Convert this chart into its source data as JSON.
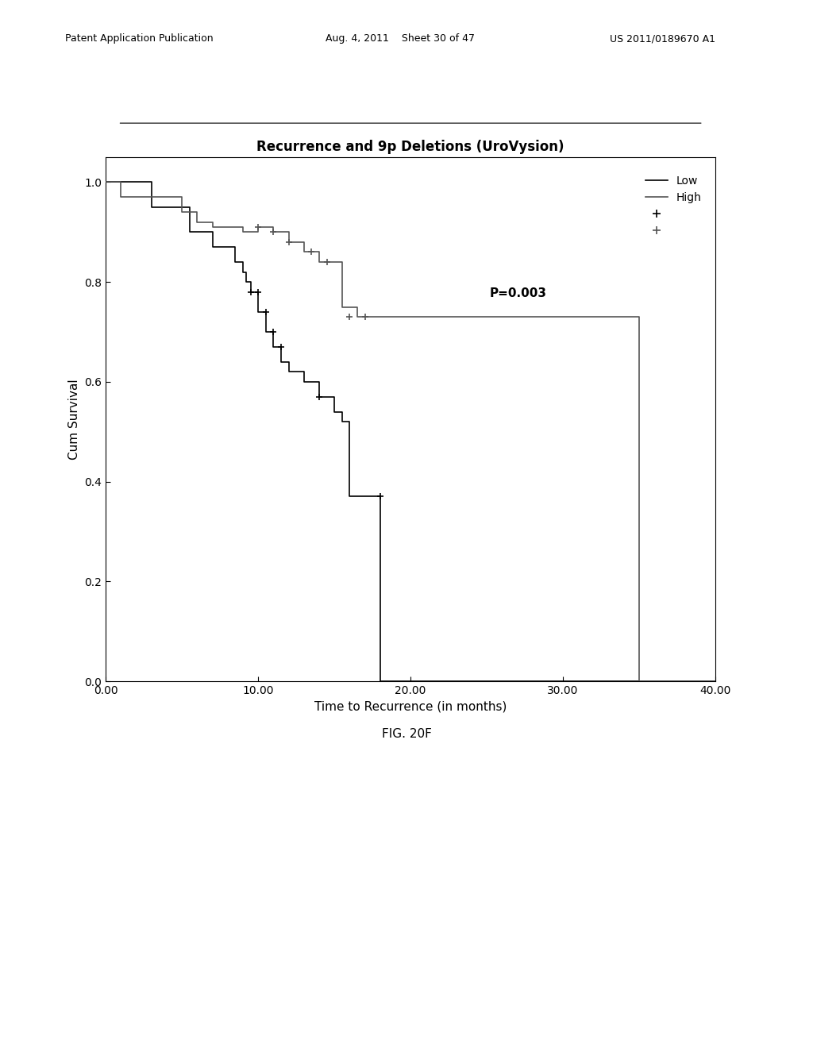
{
  "title": "Recurrence and 9p Deletions (UroVysion)",
  "xlabel": "Time to Recurrence (in months)",
  "ylabel": "Cum Survival",
  "xlim": [
    0,
    40
  ],
  "ylim": [
    0.0,
    1.05
  ],
  "xticks": [
    0.0,
    10.0,
    20.0,
    30.0,
    40.0
  ],
  "yticks": [
    0.0,
    0.2,
    0.4,
    0.6,
    0.8,
    1.0
  ],
  "p_value_text": "P=0.003",
  "background_color": "#ffffff",
  "plot_bg_color": "#ffffff",
  "low_color": "#000000",
  "high_color": "#555555",
  "low_steps_x": [
    0,
    3.0,
    3.0,
    5.5,
    5.5,
    7.0,
    7.0,
    8.5,
    8.5,
    9.0,
    9.0,
    9.2,
    9.2,
    9.5,
    9.5,
    10.0,
    10.0,
    10.5,
    10.5,
    11.0,
    11.0,
    11.5,
    11.5,
    12.0,
    12.0,
    13.0,
    13.0,
    14.0,
    14.0,
    15.0,
    15.0,
    15.5,
    15.5,
    16.0,
    16.0,
    18.0,
    18.0,
    40.0
  ],
  "low_steps_y": [
    1.0,
    1.0,
    0.95,
    0.95,
    0.9,
    0.9,
    0.87,
    0.87,
    0.84,
    0.84,
    0.82,
    0.82,
    0.8,
    0.8,
    0.78,
    0.78,
    0.74,
    0.74,
    0.7,
    0.7,
    0.67,
    0.67,
    0.64,
    0.64,
    0.62,
    0.62,
    0.6,
    0.6,
    0.57,
    0.57,
    0.54,
    0.54,
    0.52,
    0.52,
    0.37,
    0.37,
    0.0,
    0.0
  ],
  "high_steps_x": [
    0,
    1.0,
    1.0,
    5.0,
    5.0,
    6.0,
    6.0,
    7.0,
    7.0,
    8.0,
    8.0,
    9.0,
    9.0,
    10.0,
    10.0,
    11.0,
    11.0,
    12.0,
    12.0,
    13.0,
    13.0,
    14.0,
    14.0,
    15.5,
    15.5,
    16.5,
    16.5,
    17.0,
    17.0,
    35.0,
    35.0,
    40.0
  ],
  "high_steps_y": [
    1.0,
    1.0,
    0.97,
    0.97,
    0.94,
    0.94,
    0.92,
    0.92,
    0.91,
    0.91,
    0.91,
    0.91,
    0.9,
    0.9,
    0.91,
    0.91,
    0.9,
    0.9,
    0.88,
    0.88,
    0.86,
    0.86,
    0.84,
    0.84,
    0.75,
    0.75,
    0.73,
    0.73,
    0.73,
    0.73,
    0.0,
    0.0
  ],
  "low_censors_x": [
    9.5,
    10.0,
    10.5,
    11.0,
    11.5,
    14.0,
    18.0
  ],
  "low_censors_y": [
    0.78,
    0.78,
    0.74,
    0.7,
    0.67,
    0.57,
    0.37
  ],
  "high_censors_x": [
    10.0,
    11.0,
    12.0,
    13.5,
    14.5,
    16.0,
    17.0
  ],
  "high_censors_y": [
    0.91,
    0.9,
    0.88,
    0.86,
    0.84,
    0.73,
    0.73
  ],
  "header_left": "Patent Application Publication",
  "header_mid": "Aug. 4, 2011    Sheet 30 of 47",
  "header_right": "US 2011/0189670 A1",
  "fig_caption": "FIG. 20F"
}
